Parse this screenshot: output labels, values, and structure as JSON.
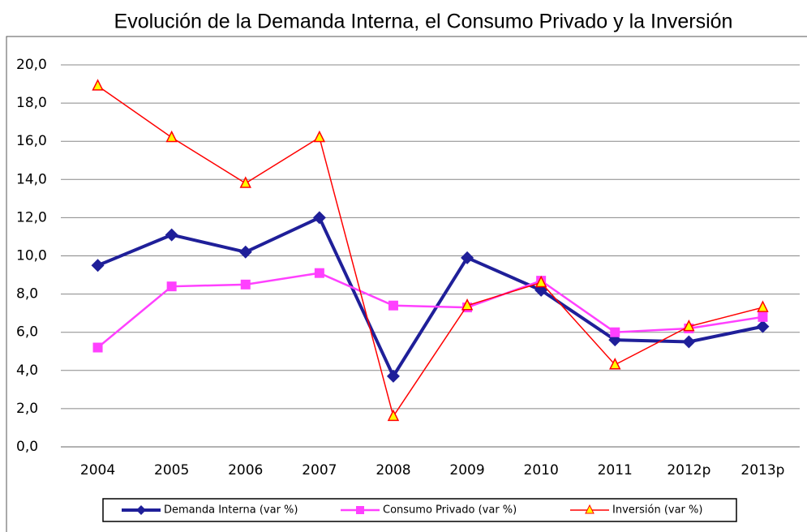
{
  "chart_data": {
    "type": "line",
    "title": "Evolución de la Demanda Interna, el Consumo Privado y la Inversión",
    "categories": [
      "2004",
      "2005",
      "2006",
      "2007",
      "2008",
      "2009",
      "2010",
      "2011",
      "2012p",
      "2013p"
    ],
    "series": [
      {
        "name": "Demanda Interna (var %)",
        "color": "#1f1f99",
        "marker": "diamond",
        "values": [
          9.5,
          11.1,
          10.2,
          12.0,
          3.7,
          9.9,
          8.2,
          5.6,
          5.5,
          6.3
        ]
      },
      {
        "name": "Consumo Privado (var %)",
        "color": "#ff40ff",
        "marker": "square",
        "values": [
          5.2,
          8.4,
          8.5,
          9.1,
          7.4,
          7.3,
          8.7,
          6.0,
          6.2,
          6.8
        ]
      },
      {
        "name": "Inversión (var %)",
        "color": "#ff0000",
        "marker": "triangle",
        "values": [
          18.9,
          16.2,
          13.8,
          16.2,
          1.6,
          7.4,
          8.6,
          4.3,
          6.3,
          7.3
        ]
      }
    ],
    "ylim": [
      0,
      20
    ],
    "yticks": [
      {
        "value": 0,
        "label": "0,0"
      },
      {
        "value": 2,
        "label": "2,0"
      },
      {
        "value": 4,
        "label": "4,0"
      },
      {
        "value": 6,
        "label": "6,0"
      },
      {
        "value": 8,
        "label": "8,0"
      },
      {
        "value": 10,
        "label": "10,0"
      },
      {
        "value": 12,
        "label": "12,0"
      },
      {
        "value": 14,
        "label": "14,0"
      },
      {
        "value": 16,
        "label": "16,0"
      },
      {
        "value": 18,
        "label": "18,0"
      },
      {
        "value": 20,
        "label": "20,0"
      }
    ],
    "grid": true,
    "legend": "bottom"
  }
}
